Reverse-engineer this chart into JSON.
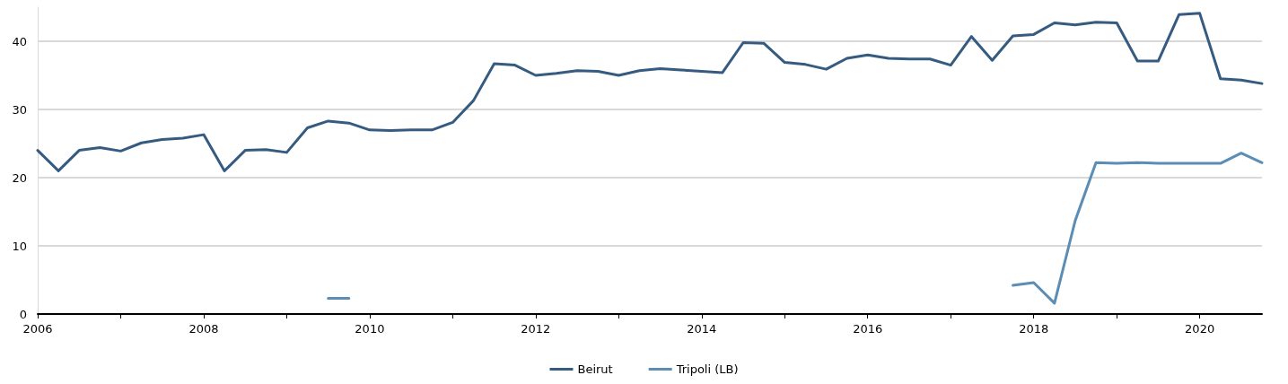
{
  "chart_data": {
    "type": "line",
    "x": [
      2006,
      2006.25,
      2006.5,
      2006.75,
      2007,
      2007.25,
      2007.5,
      2007.75,
      2008,
      2008.25,
      2008.5,
      2008.75,
      2009,
      2009.25,
      2009.5,
      2009.75,
      2010,
      2010.25,
      2010.5,
      2010.75,
      2011,
      2011.25,
      2011.5,
      2011.75,
      2012,
      2012.25,
      2012.5,
      2012.75,
      2013,
      2013.25,
      2013.5,
      2013.75,
      2014,
      2014.25,
      2014.5,
      2014.75,
      2015,
      2015.25,
      2015.5,
      2015.75,
      2016,
      2016.25,
      2016.5,
      2016.75,
      2017,
      2017.25,
      2017.5,
      2017.75,
      2018,
      2018.25,
      2018.5,
      2018.75,
      2019,
      2019.25,
      2019.5,
      2019.75,
      2020,
      2020.25,
      2020.5,
      2020.75
    ],
    "series": [
      {
        "name": "Beirut",
        "color": "#365b80",
        "values": [
          24.0,
          21.0,
          24.0,
          24.4,
          23.9,
          25.1,
          25.6,
          25.8,
          26.3,
          21.0,
          24.0,
          24.1,
          23.7,
          27.3,
          28.3,
          28.0,
          27.0,
          26.9,
          27.0,
          27.0,
          28.1,
          31.3,
          36.7,
          36.5,
          35.0,
          35.3,
          35.7,
          35.6,
          35.0,
          35.7,
          36.0,
          35.8,
          35.6,
          35.4,
          39.8,
          39.7,
          36.9,
          36.6,
          35.9,
          37.5,
          38.0,
          37.5,
          37.4,
          37.4,
          36.5,
          40.7,
          37.2,
          40.8,
          41.0,
          42.7,
          42.4,
          42.8,
          42.7,
          37.1,
          37.1,
          43.9,
          44.1,
          34.5,
          34.3,
          33.8
        ]
      },
      {
        "name": "Tripoli (LB)",
        "color": "#5b8db5",
        "values": [
          null,
          null,
          null,
          null,
          null,
          null,
          null,
          null,
          null,
          null,
          null,
          null,
          null,
          null,
          2.3,
          2.3,
          null,
          null,
          null,
          null,
          null,
          null,
          null,
          null,
          null,
          null,
          null,
          null,
          null,
          null,
          null,
          null,
          null,
          null,
          null,
          null,
          null,
          null,
          null,
          null,
          null,
          null,
          null,
          null,
          null,
          null,
          null,
          4.2,
          4.6,
          1.6,
          13.7,
          22.2,
          22.1,
          22.2,
          22.1,
          22.1,
          22.1,
          22.1,
          23.6,
          22.2
        ]
      }
    ],
    "xlim": [
      2006,
      2020.75
    ],
    "xticks": [
      2006,
      {
        "value": 2007,
        "label": null
      },
      2008,
      {
        "value": 2009,
        "label": null
      },
      2010,
      {
        "value": 2011,
        "label": null
      },
      2012,
      {
        "value": 2013,
        "label": null
      },
      2014,
      {
        "value": 2015,
        "label": null
      },
      2016,
      {
        "value": 2017,
        "label": null
      },
      2018,
      {
        "value": 2019,
        "label": null
      },
      2020
    ],
    "ylim": [
      0,
      45
    ],
    "yticks": [
      0,
      10,
      20,
      30,
      40
    ],
    "grid": "y",
    "legend": "bottom",
    "marker": "none",
    "line_style": "solid"
  }
}
